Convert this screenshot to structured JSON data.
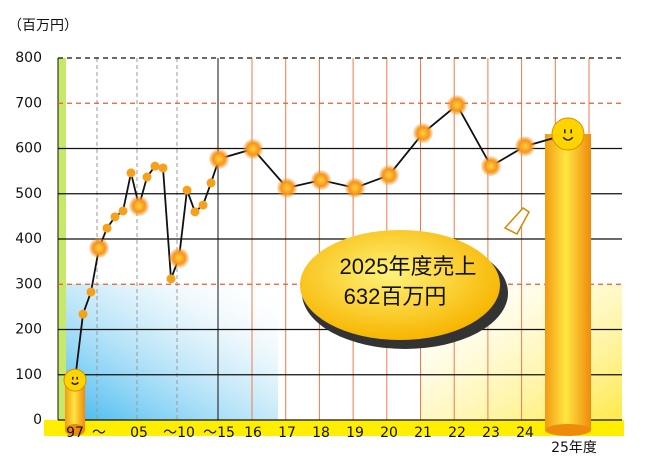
{
  "chart_data": {
    "type": "line",
    "y_label": "（百万円）",
    "categories": [
      "97",
      null,
      null,
      "〜",
      null,
      null,
      null,
      null,
      "05",
      null,
      null,
      null,
      null,
      "〜10",
      null,
      null,
      null,
      null,
      "〜15",
      "16",
      "17",
      "18",
      "19",
      "20",
      "21",
      "22",
      "23",
      "24",
      "25年度"
    ],
    "series": [
      {
        "name": "売上",
        "color": "#111111",
        "values": [
          88,
          234,
          283,
          380,
          424,
          449,
          462,
          546,
          473,
          537,
          561,
          557,
          312,
          358,
          508,
          460,
          475,
          524,
          577,
          599,
          513,
          530,
          513,
          541,
          634,
          696,
          561,
          605,
          632
        ]
      }
    ],
    "point_color": "#f7a01a",
    "ylim": [
      0,
      800
    ],
    "yticks": [
      0,
      100,
      200,
      300,
      400,
      500,
      600,
      700,
      800
    ],
    "grid": true,
    "annotation": [
      "2025年度売上",
      "632百万円"
    ]
  }
}
